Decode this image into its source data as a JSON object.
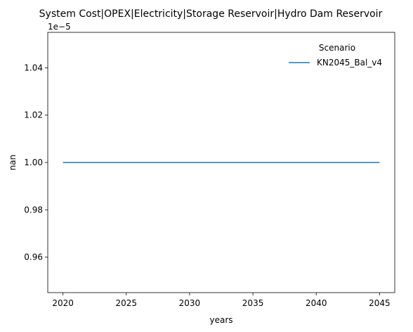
{
  "chart_data": {
    "type": "line",
    "title": "System Cost|OPEX|Electricity|Storage Reservoir|Hydro Dam Reservoir",
    "xlabel": "years",
    "ylabel": "nan",
    "y_offset_label": "1e−5",
    "xlim": [
      2018.8,
      2046.2
    ],
    "ylim": [
      0.945,
      1.055
    ],
    "x_ticks": [
      2020,
      2025,
      2030,
      2035,
      2040,
      2045
    ],
    "x_tick_labels": [
      "2020",
      "2025",
      "2030",
      "2035",
      "2040",
      "2045"
    ],
    "y_ticks": [
      0.96,
      0.98,
      1.0,
      1.02,
      1.04
    ],
    "y_tick_labels": [
      "0.96",
      "0.98",
      "1.00",
      "1.02",
      "1.04"
    ],
    "grid": false,
    "legend": {
      "title": "Scenario",
      "placement": "top-right",
      "entries": [
        {
          "name": "KN2045_Bal_v4",
          "color": "#1f77b4"
        }
      ]
    },
    "series": [
      {
        "name": "KN2045_Bal_v4",
        "color": "#1f77b4",
        "x": [
          2020,
          2025,
          2030,
          2035,
          2040,
          2045
        ],
        "y": [
          1.0,
          1.0,
          1.0,
          1.0,
          1.0,
          1.0
        ]
      }
    ]
  }
}
